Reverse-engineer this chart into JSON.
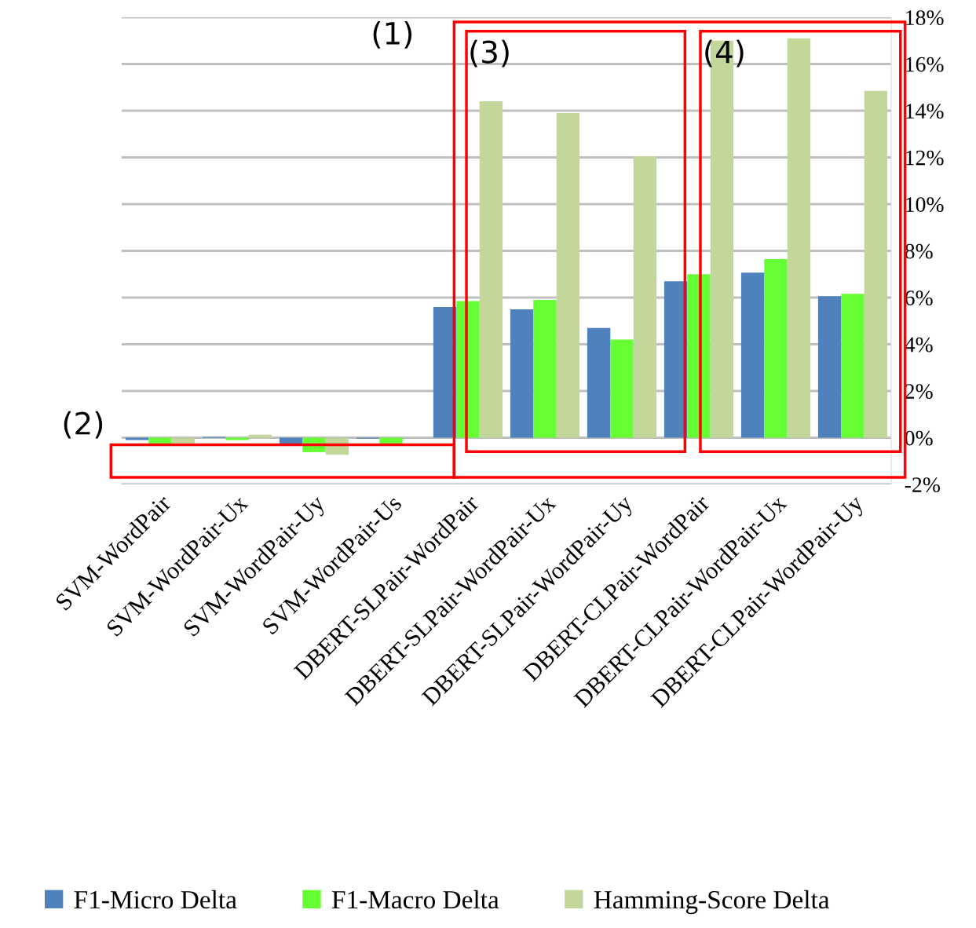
{
  "chart_data": {
    "type": "bar",
    "categories": [
      "SVM-WordPair",
      "SVM-WordPair-Ux",
      "SVM-WordPair-Uy",
      "SVM-WordPair-Us",
      "DBERT-SLPair-WordPair",
      "DBERT-SLPair-WordPair-Ux",
      "DBERT-SLPair-WordPair-Uy",
      "DBERT-CLPair-WordPair",
      "DBERT-CLPair-WordPair-Ux",
      "DBERT-CLPair-WordPair-Uy"
    ],
    "series": [
      {
        "name": "F1-Micro Delta",
        "color": "#4f81bd",
        "values": [
          -0.1,
          0.04,
          -0.28,
          -0.04,
          5.6,
          5.5,
          4.7,
          6.7,
          7.07,
          6.06
        ]
      },
      {
        "name": "F1-Macro Delta",
        "color": "#66ff33",
        "values": [
          -0.28,
          -0.1,
          -0.62,
          -0.34,
          5.85,
          5.9,
          4.2,
          7.0,
          7.65,
          6.16
        ]
      },
      {
        "name": "Hamming-Score Delta",
        "color": "#c4d79b",
        "values": [
          -0.24,
          0.13,
          -0.73,
          0,
          14.4,
          13.9,
          12.05,
          17.0,
          17.1,
          14.85
        ]
      }
    ],
    "ylim": [
      -2,
      18
    ],
    "yticks": [
      {
        "value": -2,
        "label": "-2%"
      },
      {
        "value": 0,
        "label": "0%"
      },
      {
        "value": 2,
        "label": "2%"
      },
      {
        "value": 4,
        "label": "4%"
      },
      {
        "value": 6,
        "label": "6%"
      },
      {
        "value": 8,
        "label": "8%"
      },
      {
        "value": 10,
        "label": "10%"
      },
      {
        "value": 12,
        "label": "12%"
      },
      {
        "value": 14,
        "label": "14%"
      },
      {
        "value": 16,
        "label": "16%"
      },
      {
        "value": 18,
        "label": "18%"
      }
    ],
    "annotations": [
      "(1)",
      "(2)",
      "(3)",
      "(4)"
    ],
    "grid": "y",
    "legend": "bottom"
  }
}
